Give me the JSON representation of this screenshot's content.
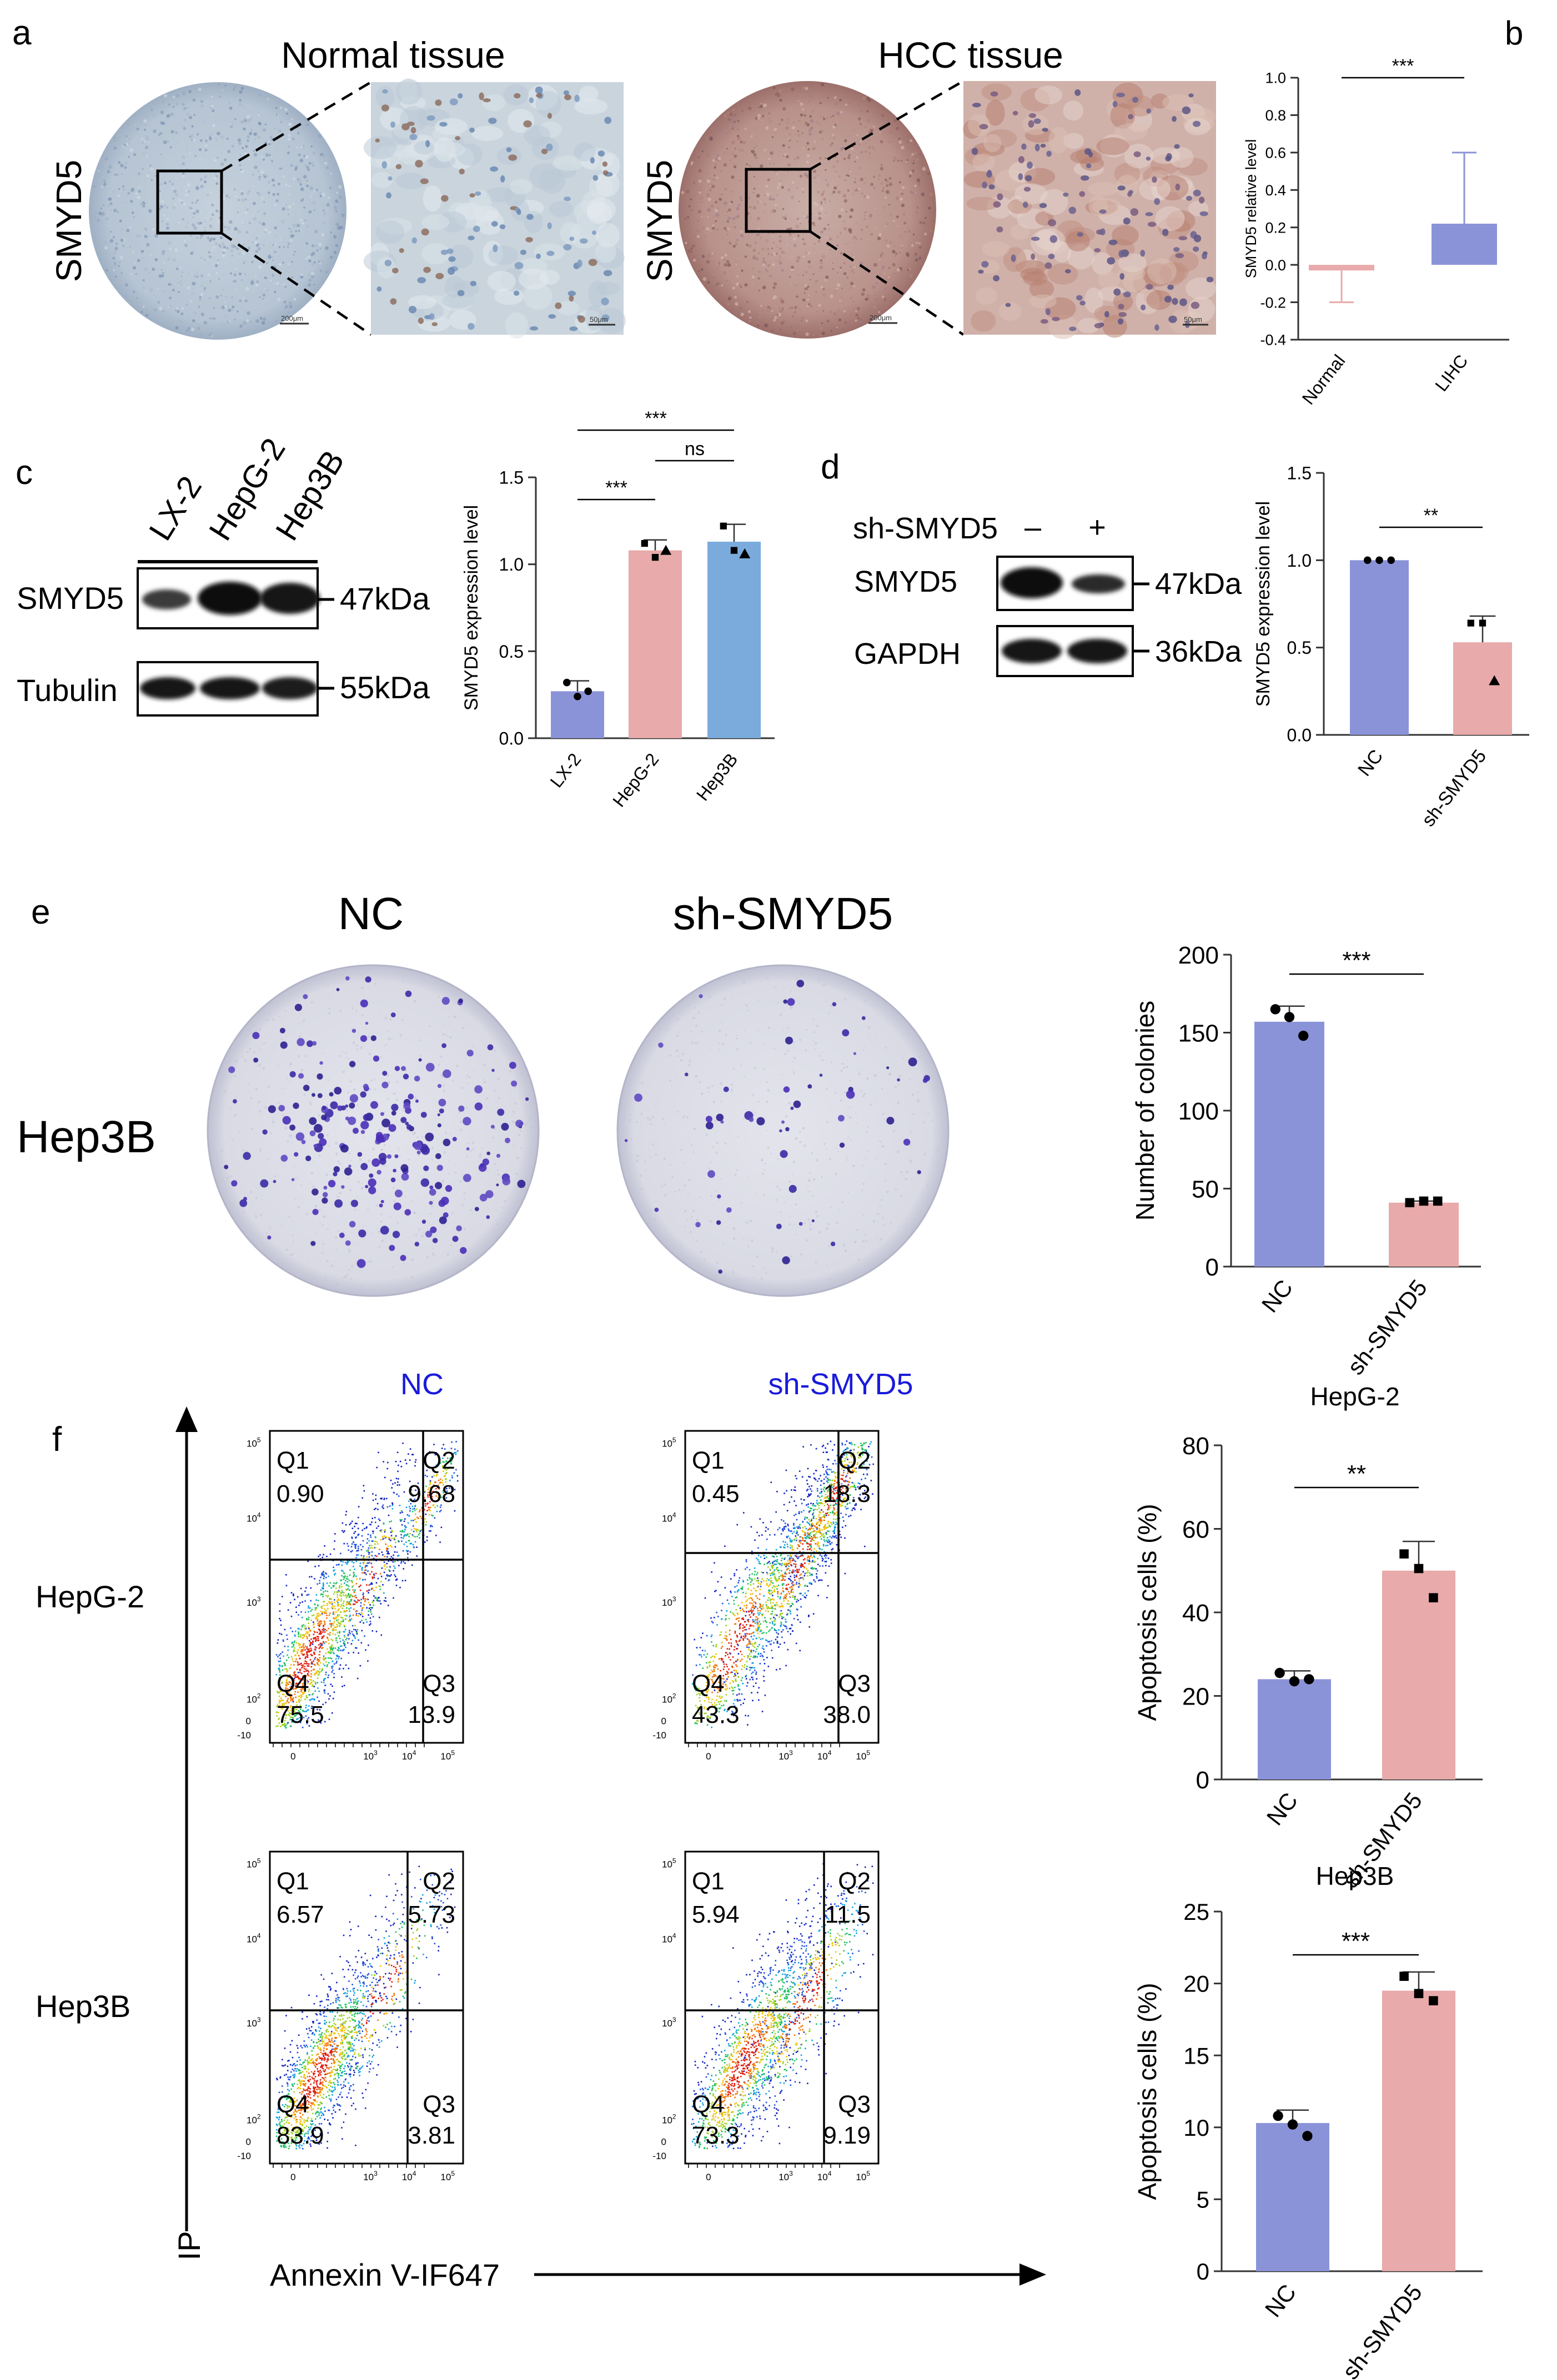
{
  "panel_a": {
    "label": "a",
    "normal_title": "Normal tissue",
    "hcc_title": "HCC tissue",
    "side_label": "SMYD5",
    "scale_overview": "200μm",
    "scale_zoom": "50μm"
  },
  "panel_c": {
    "label": "c",
    "lanes": [
      "LX-2",
      "HepG-2",
      "Hep3B"
    ],
    "rows": [
      "SMYD5",
      "Tubulin"
    ],
    "sizes": [
      "47kDa",
      "55kDa"
    ]
  },
  "panel_d": {
    "label": "d",
    "treatment": "sh-SMYD5",
    "signs": [
      "–",
      "+"
    ],
    "rows": [
      "SMYD5",
      "GAPDH"
    ],
    "sizes": [
      "47kDa",
      "36kDa"
    ]
  },
  "panel_e": {
    "label": "e",
    "col_titles": [
      "NC",
      "sh-SMYD5"
    ],
    "row_label": "Hep3B"
  },
  "panel_f": {
    "label": "f",
    "col_titles": [
      "NC",
      "sh-SMYD5"
    ],
    "row_labels": [
      "HepG-2",
      "Hep3B"
    ],
    "y_axis_label": "IP",
    "x_axis_label": "Annexin V-IF647",
    "plots": [
      {
        "q": [
          "0.90",
          "9.68",
          "13.9",
          "75.5"
        ]
      },
      {
        "q": [
          "0.45",
          "18.3",
          "38.0",
          "43.3"
        ]
      },
      {
        "q": [
          "6.57",
          "5.73",
          "3.81",
          "83.9"
        ]
      },
      {
        "q": [
          "5.94",
          "11.5",
          "9.19",
          "73.3"
        ]
      }
    ],
    "quadrant_names": [
      "Q1",
      "Q2",
      "Q3",
      "Q4"
    ]
  },
  "colors": {
    "blue_bar": "#8b93d8",
    "pink_bar": "#e8aaaa",
    "light_blue_bar": "#7aabdc",
    "title_blue": "#1a1adc"
  },
  "chart_data": [
    {
      "id": "b",
      "label": "b",
      "type": "bar",
      "categories": [
        "Normal",
        "LIHC"
      ],
      "values": [
        -0.03,
        0.22
      ],
      "error_bars": [
        [
          -0.2,
          null
        ],
        [
          null,
          0.6
        ]
      ],
      "ylabel": "SMYD5 relative level",
      "ylim": [
        -0.4,
        1.0
      ],
      "yticks": [
        "-0.4",
        "-0.2",
        "0.0",
        "0.2",
        "0.4",
        "0.6",
        "0.8",
        "1.0"
      ],
      "significance": [
        {
          "pair": [
            0,
            1
          ],
          "text": "***"
        }
      ]
    },
    {
      "id": "c",
      "label": "c",
      "type": "bar",
      "categories": [
        "LX-2",
        "HepG-2",
        "Hep3B"
      ],
      "values": [
        0.27,
        1.08,
        1.13
      ],
      "errors": [
        0.06,
        0.06,
        0.1
      ],
      "points": [
        [
          0.32,
          0.24,
          0.27
        ],
        [
          1.12,
          1.04,
          1.08
        ],
        [
          1.22,
          1.08,
          1.06
        ]
      ],
      "ylabel": "SMYD5 expression level",
      "ylim": [
        0,
        1.5
      ],
      "yticks": [
        "0.0",
        "0.5",
        "1.0",
        "1.5"
      ],
      "significance": [
        {
          "pair": [
            0,
            1
          ],
          "text": "***"
        },
        {
          "pair": [
            1,
            2
          ],
          "text": "ns"
        },
        {
          "pair": [
            0,
            2
          ],
          "text": "***"
        }
      ]
    },
    {
      "id": "d",
      "label": "d",
      "type": "bar",
      "categories": [
        "NC",
        "sh-SMYD5"
      ],
      "values": [
        1.0,
        0.53
      ],
      "errors": [
        0.0,
        0.15
      ],
      "points": [
        [
          1.0,
          1.0,
          1.0
        ],
        [
          0.64,
          0.64,
          0.31
        ]
      ],
      "ylabel": "SMYD5 expression level",
      "ylim": [
        0,
        1.5
      ],
      "yticks": [
        "0.0",
        "0.5",
        "1.0",
        "1.5"
      ],
      "significance": [
        {
          "pair": [
            0,
            1
          ],
          "text": "**"
        }
      ]
    },
    {
      "id": "e",
      "label": "e",
      "type": "bar",
      "categories": [
        "NC",
        "sh-SMYD5"
      ],
      "values": [
        157,
        41
      ],
      "errors": [
        10,
        1
      ],
      "points": [
        [
          165,
          160,
          148
        ],
        [
          41,
          42,
          42
        ]
      ],
      "ylabel": "Number of colonies",
      "ylim": [
        0,
        200
      ],
      "yticks": [
        "0",
        "50",
        "100",
        "150",
        "200"
      ],
      "significance": [
        {
          "pair": [
            0,
            1
          ],
          "text": "***"
        }
      ]
    },
    {
      "id": "f1",
      "label": "f",
      "type": "bar",
      "title": "HepG-2",
      "categories": [
        "NC",
        "sh-SMYD5"
      ],
      "values": [
        24,
        50
      ],
      "errors": [
        2,
        7
      ],
      "points": [
        [
          25.5,
          23.5,
          24
        ],
        [
          54,
          50.5,
          43.5
        ]
      ],
      "ylabel": "Apoptosis cells (%)",
      "ylim": [
        0,
        80
      ],
      "yticks": [
        "0",
        "20",
        "40",
        "60",
        "80"
      ],
      "significance": [
        {
          "pair": [
            0,
            1
          ],
          "text": "**"
        }
      ]
    },
    {
      "id": "f2",
      "label": "f",
      "type": "bar",
      "title": "Hep3B",
      "categories": [
        "NC",
        "sh-SMYD5"
      ],
      "values": [
        10.3,
        19.5
      ],
      "errors": [
        0.9,
        1.3
      ],
      "points": [
        [
          10.8,
          10.2,
          9.4
        ],
        [
          20.5,
          19.3,
          18.8
        ]
      ],
      "ylabel": "Apoptosis cells (%)",
      "ylim": [
        0,
        25
      ],
      "yticks": [
        "0",
        "5",
        "10",
        "15",
        "20",
        "25"
      ],
      "significance": [
        {
          "pair": [
            0,
            1
          ],
          "text": "***"
        }
      ]
    }
  ]
}
